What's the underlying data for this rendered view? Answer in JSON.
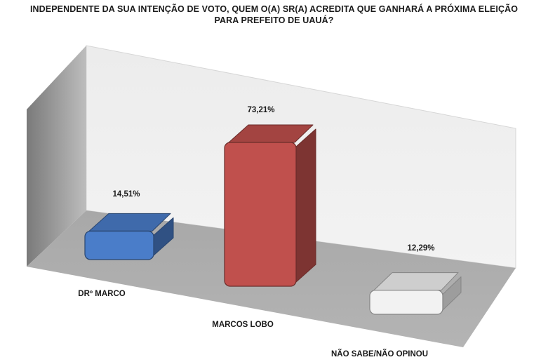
{
  "chart_data": {
    "type": "bar",
    "title_lines": [
      "INDEPENDENTE DA SUA INTENÇÃO DE VOTO, QUEM O(A) SR(A) ACREDITA QUE GANHARÁ A PRÓXIMA ELEIÇÃO",
      "PARA PREFEITO DE UAUÁ?"
    ],
    "categories": [
      "DRº MARCO",
      "MARCOS LOBO",
      "NÃO SABE/NÃO OPINOU"
    ],
    "values": [
      14.51,
      73.21,
      12.29
    ],
    "value_labels": [
      "14,51%",
      "73,21%",
      "12,29%"
    ],
    "colors": [
      "#4a7dc9",
      "#c0504d",
      "#f2f2f2"
    ],
    "ylim": [
      0,
      100
    ],
    "grid": false,
    "legend": "none",
    "style": "3d-rounded-bars"
  }
}
